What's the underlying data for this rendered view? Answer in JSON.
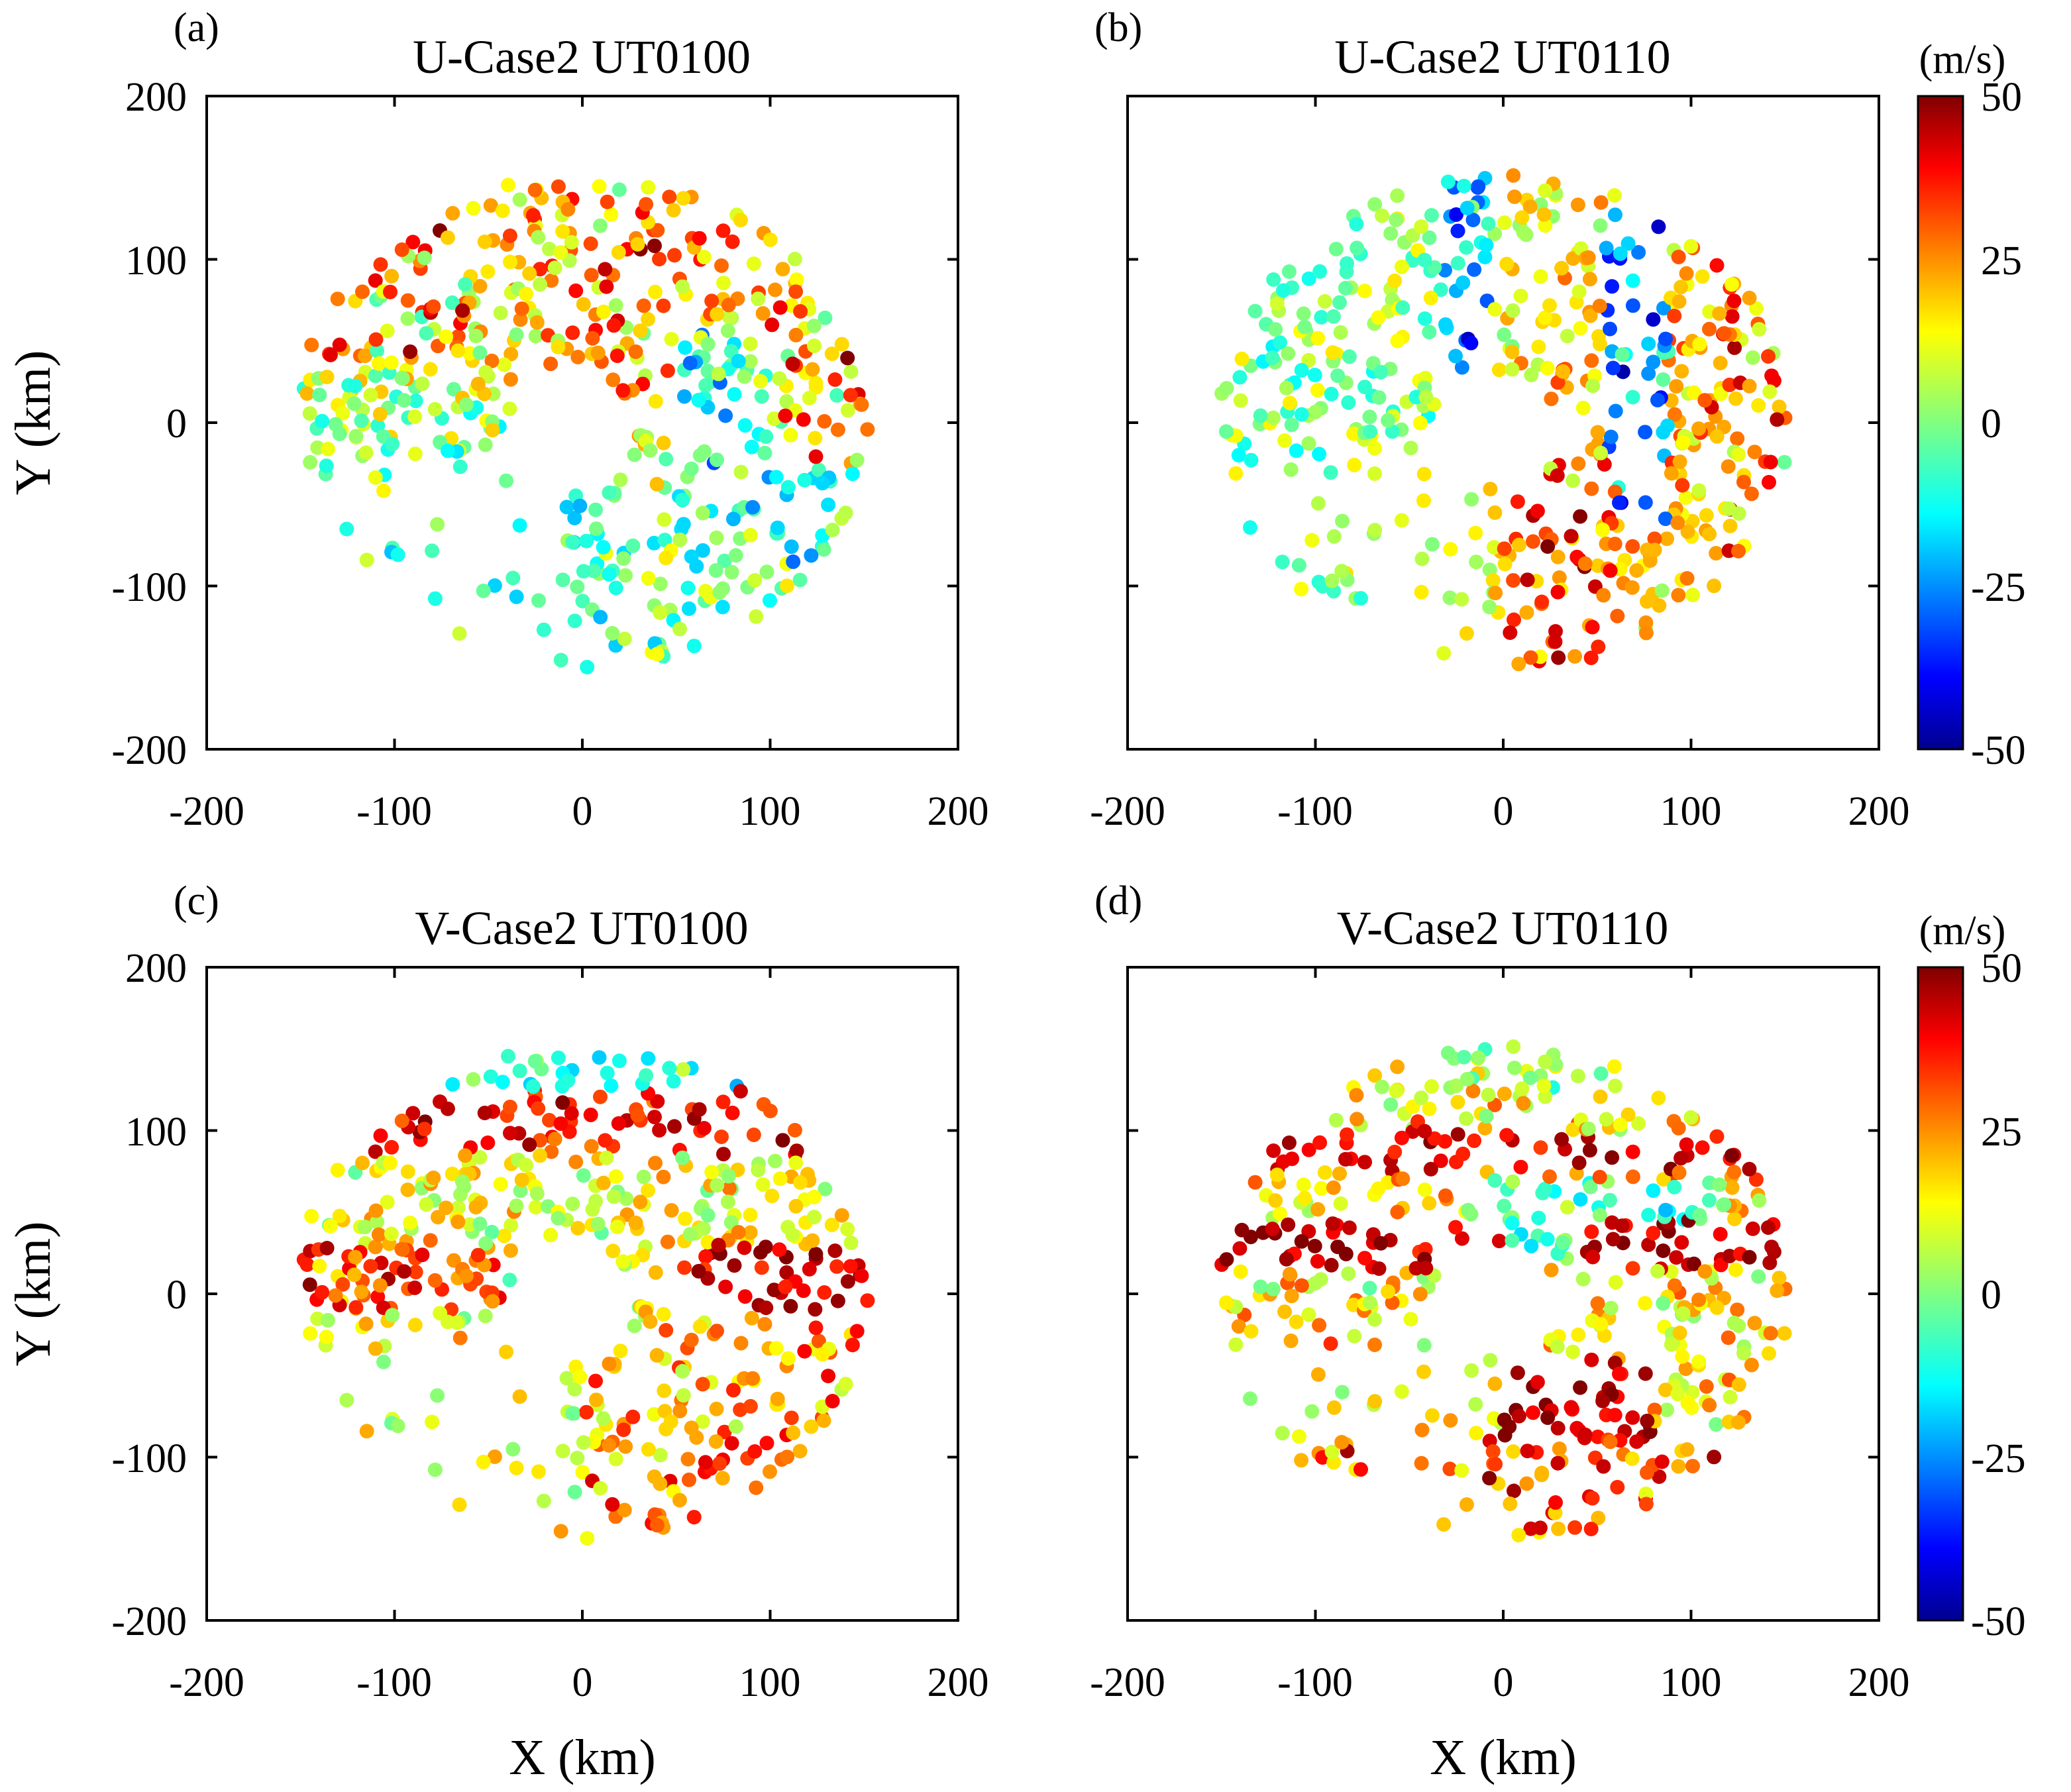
{
  "chart_data": [
    {
      "type": "scatter",
      "panel": "(a)",
      "title": "U-Case2 UT0100",
      "xlabel": "",
      "ylabel": "Y (km)",
      "xlim": [
        -200,
        200
      ],
      "ylim": [
        -200,
        200
      ],
      "xticks": [
        "-200",
        "-100",
        "0",
        "100",
        "200"
      ],
      "yticks": [
        "200",
        "100",
        "0",
        "-100",
        "-200"
      ],
      "color_variable": "U",
      "color_range": [
        -50,
        50
      ],
      "seed": 11,
      "mode": "u0100"
    },
    {
      "type": "scatter",
      "panel": "(b)",
      "title": "U-Case2 UT0110",
      "xlabel": "",
      "ylabel": "",
      "xlim": [
        -200,
        200
      ],
      "ylim": [
        -200,
        200
      ],
      "xticks": [
        "-200",
        "-100",
        "0",
        "100",
        "200"
      ],
      "yticks": [],
      "color_variable": "U",
      "color_range": [
        -50,
        50
      ],
      "seed": 23,
      "mode": "u0110"
    },
    {
      "type": "scatter",
      "panel": "(c)",
      "title": "V-Case2 UT0100",
      "xlabel": "X (km)",
      "ylabel": "Y (km)",
      "xlim": [
        -200,
        200
      ],
      "ylim": [
        -200,
        200
      ],
      "xticks": [
        "-200",
        "-100",
        "0",
        "100",
        "200"
      ],
      "yticks": [
        "200",
        "100",
        "0",
        "-100",
        "-200"
      ],
      "color_variable": "V",
      "color_range": [
        -50,
        50
      ],
      "seed": 11,
      "mode": "v0100"
    },
    {
      "type": "scatter",
      "panel": "(d)",
      "title": "V-Case2 UT0110",
      "xlabel": "X (km)",
      "ylabel": "",
      "xlim": [
        -200,
        200
      ],
      "ylim": [
        -200,
        200
      ],
      "xticks": [
        "-200",
        "-100",
        "0",
        "100",
        "200"
      ],
      "yticks": [],
      "color_variable": "V",
      "color_range": [
        -50,
        50
      ],
      "seed": 23,
      "mode": "v0110"
    }
  ],
  "colorbars": [
    {
      "unit": "(m/s)",
      "ticks": [
        "50",
        "25",
        "0",
        "-25",
        "-50"
      ],
      "colormap": "jet",
      "range": [
        -50,
        50
      ]
    },
    {
      "unit": "(m/s)",
      "ticks": [
        "50",
        "25",
        "0",
        "-25",
        "-50"
      ],
      "colormap": "jet",
      "range": [
        -50,
        50
      ]
    }
  ],
  "colors": {
    "background": "#ffffff",
    "axis": "#000000",
    "jet_low": "#00008f",
    "jet_mid": "#80ff80",
    "jet_high": "#800000"
  }
}
